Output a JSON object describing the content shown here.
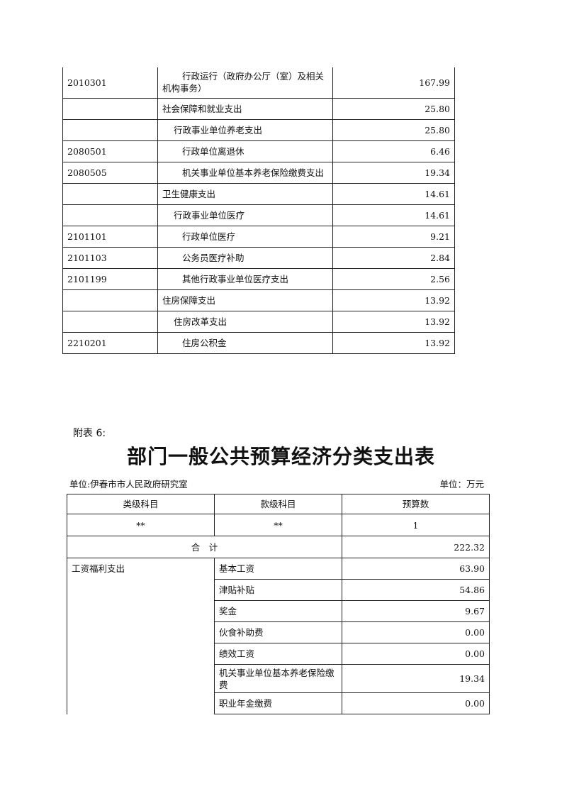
{
  "table1": {
    "rows": [
      {
        "code": "2010301",
        "name": "行政运行（政府办公厅（室）及相关机构事务）",
        "amount": "167.99",
        "level": 3
      },
      {
        "code": "",
        "name": "社会保障和就业支出",
        "amount": "25.80",
        "level": 1
      },
      {
        "code": "",
        "name": "行政事业单位养老支出",
        "amount": "25.80",
        "level": 2
      },
      {
        "code": "2080501",
        "name": "行政单位离退休",
        "amount": "6.46",
        "level": 3
      },
      {
        "code": "2080505",
        "name": "机关事业单位基本养老保险缴费支出",
        "amount": "19.34",
        "level": 3
      },
      {
        "code": "",
        "name": "卫生健康支出",
        "amount": "14.61",
        "level": 1
      },
      {
        "code": "",
        "name": "行政事业单位医疗",
        "amount": "14.61",
        "level": 2
      },
      {
        "code": "2101101",
        "name": "行政单位医疗",
        "amount": "9.21",
        "level": 3
      },
      {
        "code": "2101103",
        "name": "公务员医疗补助",
        "amount": "2.84",
        "level": 3
      },
      {
        "code": "2101199",
        "name": "其他行政事业单位医疗支出",
        "amount": "2.56",
        "level": 3
      },
      {
        "code": "",
        "name": "住房保障支出",
        "amount": "13.92",
        "level": 1
      },
      {
        "code": "",
        "name": "住房改革支出",
        "amount": "13.92",
        "level": 2
      },
      {
        "code": "2210201",
        "name": "住房公积金",
        "amount": "13.92",
        "level": 3
      }
    ]
  },
  "attachment_label": "附表 6:",
  "title": "部门一般公共预算经济分类支出表",
  "unit_org": "单位:伊春市市人民政府研究室",
  "unit_currency": "单位：万元",
  "table2": {
    "headers": [
      "类级科目",
      "款级科目",
      "预算数"
    ],
    "index_row": [
      "**",
      "**",
      "1"
    ],
    "total_label": "合　计",
    "total_value": "222.32",
    "category": "工资福利支出",
    "items": [
      {
        "name": "基本工资",
        "amount": "63.90"
      },
      {
        "name": "津贴补贴",
        "amount": "54.86"
      },
      {
        "name": "奖金",
        "amount": "9.67"
      },
      {
        "name": "伙食补助费",
        "amount": "0.00"
      },
      {
        "name": "绩效工资",
        "amount": "0.00"
      },
      {
        "name": "机关事业单位基本养老保险缴费",
        "amount": "19.34"
      },
      {
        "name": "职业年金缴费",
        "amount": "0.00"
      }
    ]
  }
}
